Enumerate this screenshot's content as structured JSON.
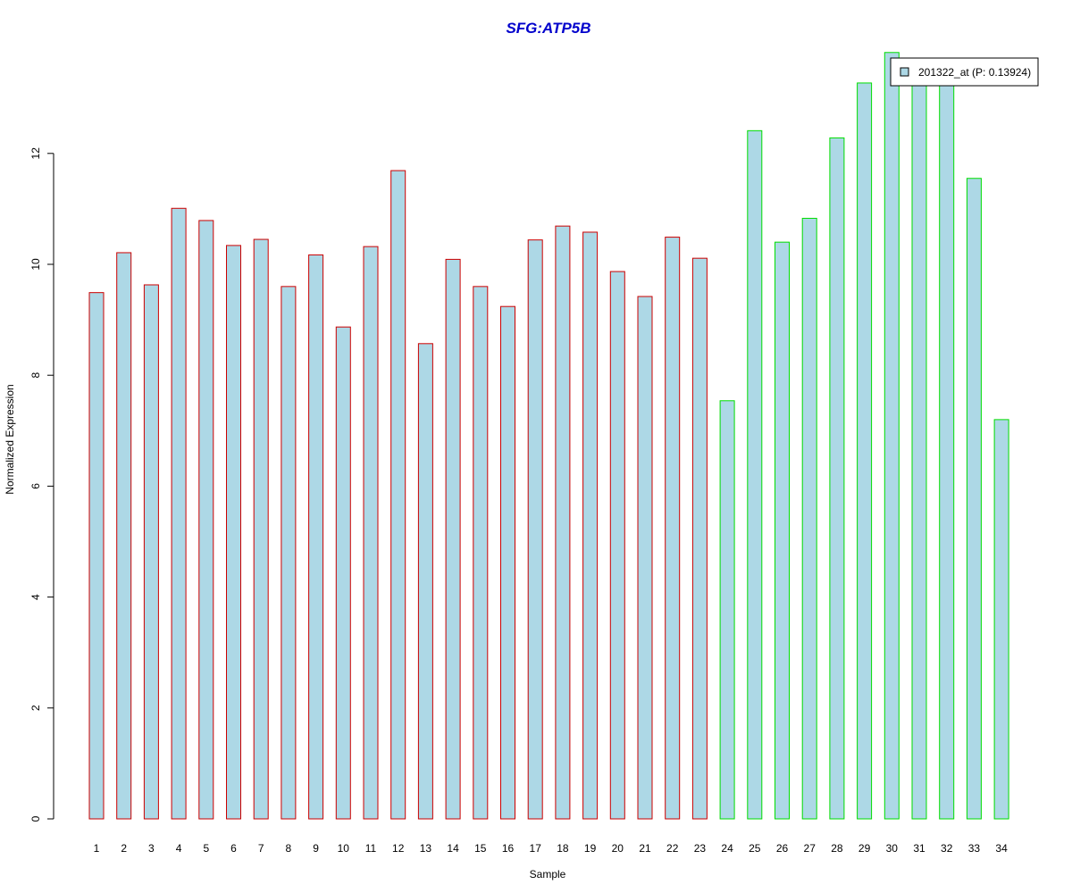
{
  "chart_data": {
    "type": "bar",
    "title": "SFG:ATP5B",
    "xlabel": "Sample",
    "ylabel": "Normalized Expression",
    "ylim": [
      0,
      13.8
    ],
    "yticks": [
      0,
      2,
      4,
      6,
      8,
      10,
      12
    ],
    "categories": [
      "1",
      "2",
      "3",
      "4",
      "5",
      "6",
      "7",
      "8",
      "9",
      "10",
      "11",
      "12",
      "13",
      "14",
      "15",
      "16",
      "17",
      "18",
      "19",
      "20",
      "21",
      "22",
      "23",
      "24",
      "25",
      "26",
      "27",
      "28",
      "29",
      "30",
      "31",
      "32",
      "33",
      "34"
    ],
    "series": [
      {
        "name": "201322_at (P: 0.13924)",
        "values": [
          9.49,
          10.21,
          9.63,
          11.01,
          10.79,
          10.34,
          10.45,
          9.6,
          10.17,
          8.87,
          10.32,
          11.69,
          8.57,
          10.09,
          9.6,
          9.24,
          10.44,
          10.69,
          10.58,
          9.87,
          9.42,
          10.49,
          10.11,
          7.54,
          12.41,
          10.4,
          10.83,
          12.28,
          13.27,
          13.82,
          13.3,
          13.3,
          11.55,
          7.2
        ]
      }
    ],
    "bar_fill": "#add8e6",
    "group_border_colors": [
      "#cc0000",
      "#cc0000",
      "#cc0000",
      "#cc0000",
      "#cc0000",
      "#cc0000",
      "#cc0000",
      "#cc0000",
      "#cc0000",
      "#cc0000",
      "#cc0000",
      "#cc0000",
      "#cc0000",
      "#cc0000",
      "#cc0000",
      "#cc0000",
      "#cc0000",
      "#cc0000",
      "#cc0000",
      "#cc0000",
      "#cc0000",
      "#cc0000",
      "#cc0000",
      "#00dd00",
      "#00dd00",
      "#00dd00",
      "#00dd00",
      "#00dd00",
      "#00dd00",
      "#00dd00",
      "#00dd00",
      "#00dd00",
      "#00dd00",
      "#00dd00"
    ],
    "grid": false,
    "legend_position": "top-right"
  }
}
